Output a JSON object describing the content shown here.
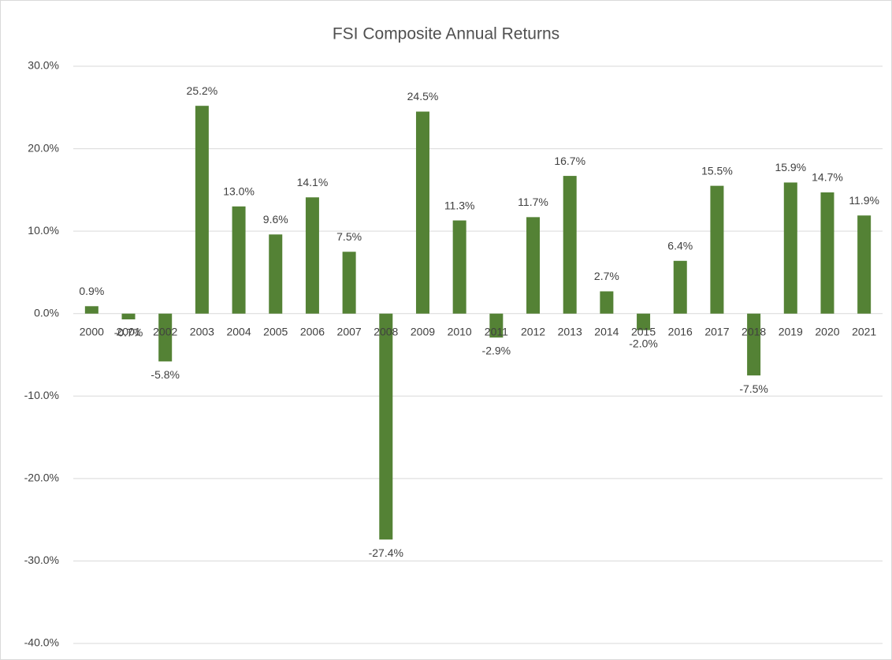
{
  "chart_data": {
    "type": "bar",
    "title": "FSI Composite Annual Returns",
    "categories": [
      "2000",
      "2001",
      "2002",
      "2003",
      "2004",
      "2005",
      "2006",
      "2007",
      "2008",
      "2009",
      "2010",
      "2011",
      "2012",
      "2013",
      "2014",
      "2015",
      "2016",
      "2017",
      "2018",
      "2019",
      "2020",
      "2021"
    ],
    "values": [
      0.9,
      -0.7,
      -5.8,
      25.2,
      13.0,
      9.6,
      14.1,
      7.5,
      -27.4,
      24.5,
      11.3,
      -2.9,
      11.7,
      16.7,
      2.7,
      -2.0,
      6.4,
      15.5,
      -7.5,
      15.9,
      14.7,
      11.9
    ],
    "value_labels": [
      "0.9%",
      "-0.7%",
      "-5.8%",
      "25.2%",
      "13.0%",
      "9.6%",
      "14.1%",
      "7.5%",
      "-27.4%",
      "24.5%",
      "11.3%",
      "-2.9%",
      "11.7%",
      "16.7%",
      "2.7%",
      "-2.0%",
      "6.4%",
      "15.5%",
      "-7.5%",
      "15.9%",
      "14.7%",
      "11.9%"
    ],
    "color": "#548235",
    "ylim": [
      -40,
      30
    ],
    "yticks": [
      {
        "value": -40,
        "label": "-40.0%"
      },
      {
        "value": -30,
        "label": "-30.0%"
      },
      {
        "value": -20,
        "label": "-20.0%"
      },
      {
        "value": -10,
        "label": "-10.0%"
      },
      {
        "value": 0,
        "label": "0.0%"
      },
      {
        "value": 10,
        "label": "10.0%"
      },
      {
        "value": 20,
        "label": "20.0%"
      },
      {
        "value": 30,
        "label": "30.0%"
      }
    ],
    "grid": true
  }
}
